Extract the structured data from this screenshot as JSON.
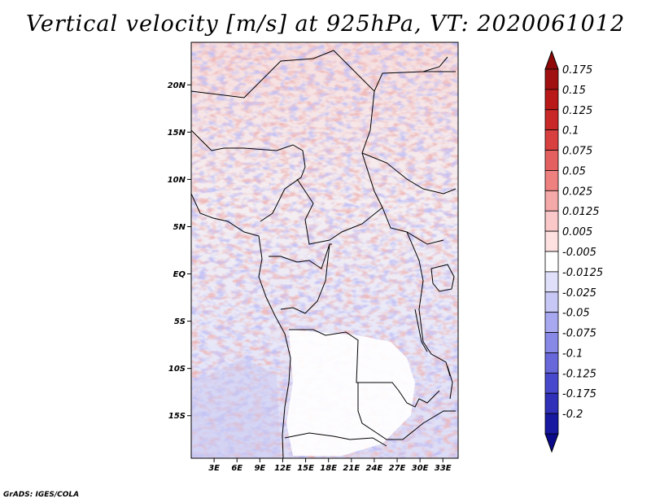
{
  "title": "Vertical velocity [m/s] at 925hPa, VT: 2020061012",
  "credit": "GrADS: IGES/COLA",
  "map": {
    "lon_range": [
      0,
      35
    ],
    "lat_range": [
      -19.5,
      24.5
    ],
    "lat_ticks": [
      {
        "value": 20,
        "label": "20N"
      },
      {
        "value": 15,
        "label": "15N"
      },
      {
        "value": 10,
        "label": "10N"
      },
      {
        "value": 5,
        "label": "5N"
      },
      {
        "value": 0,
        "label": "EQ"
      },
      {
        "value": -5,
        "label": "5S"
      },
      {
        "value": -10,
        "label": "10S"
      },
      {
        "value": -15,
        "label": "15S"
      }
    ],
    "lon_ticks": [
      {
        "value": 3,
        "label": "3E"
      },
      {
        "value": 6,
        "label": "6E"
      },
      {
        "value": 9,
        "label": "9E"
      },
      {
        "value": 12,
        "label": "12E"
      },
      {
        "value": 15,
        "label": "15E"
      },
      {
        "value": 18,
        "label": "18E"
      },
      {
        "value": 21,
        "label": "21E"
      },
      {
        "value": 24,
        "label": "24E"
      },
      {
        "value": 27,
        "label": "27E"
      },
      {
        "value": 30,
        "label": "30E"
      },
      {
        "value": 33,
        "label": "33E"
      }
    ]
  },
  "colorbar": {
    "levels": [
      {
        "label": "0.175",
        "color": "#a01010"
      },
      {
        "label": "0.15",
        "color": "#b81818"
      },
      {
        "label": "0.125",
        "color": "#c82828"
      },
      {
        "label": "0.1",
        "color": "#d84040"
      },
      {
        "label": "0.075",
        "color": "#e46060"
      },
      {
        "label": "0.05",
        "color": "#ee8080"
      },
      {
        "label": "0.025",
        "color": "#f5a8a8"
      },
      {
        "label": "0.0125",
        "color": "#fac8c8"
      },
      {
        "label": "0.005",
        "color": "#fde0e0"
      },
      {
        "label": "-0.005",
        "color": "#ffffff"
      },
      {
        "label": "-0.0125",
        "color": "#e0e0fb"
      },
      {
        "label": "-0.025",
        "color": "#c8c8f6"
      },
      {
        "label": "-0.05",
        "color": "#a8a8f0"
      },
      {
        "label": "-0.075",
        "color": "#8888e6"
      },
      {
        "label": "-0.1",
        "color": "#6868da"
      },
      {
        "label": "-0.125",
        "color": "#4848cc"
      },
      {
        "label": "-0.175",
        "color": "#3030b8"
      },
      {
        "label": "-0.2",
        "color": "#1818a0"
      }
    ],
    "top_arrow_color": "#8e0808",
    "bottom_arrow_color": "#0a0a8a"
  }
}
